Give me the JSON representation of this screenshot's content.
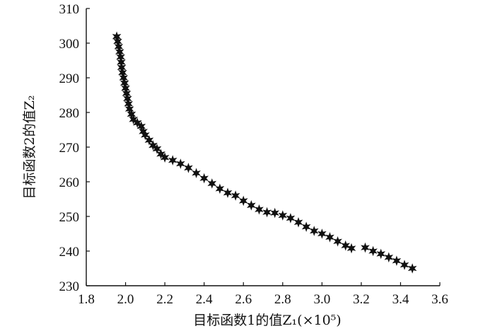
{
  "chart_data": {
    "type": "scatter",
    "title": "",
    "xlabel": "目标函数1的值Z₁(×10⁵)",
    "ylabel": "目标函数2的值Z₂",
    "xlim": [
      1.8,
      3.6
    ],
    "ylim": [
      230,
      310
    ],
    "xticks": [
      "1.8",
      "2.0",
      "2.2",
      "2.4",
      "2.6",
      "2.8",
      "3.0",
      "3.2",
      "3.4",
      "3.6"
    ],
    "yticks": [
      "230",
      "240",
      "250",
      "260",
      "270",
      "280",
      "290",
      "300",
      "310"
    ],
    "grid": false,
    "marker": "star",
    "series": [
      {
        "points": [
          [
            1.955,
            301.9
          ],
          [
            1.96,
            300.5
          ],
          [
            1.965,
            299.0
          ],
          [
            1.97,
            297.5
          ],
          [
            1.975,
            296.0
          ],
          [
            1.978,
            294.5
          ],
          [
            1.98,
            293.0
          ],
          [
            1.985,
            291.5
          ],
          [
            1.99,
            290.0
          ],
          [
            1.995,
            288.5
          ],
          [
            2.0,
            287.0
          ],
          [
            2.005,
            285.5
          ],
          [
            2.01,
            284.0
          ],
          [
            2.015,
            282.5
          ],
          [
            2.02,
            281.0
          ],
          [
            2.03,
            279.5
          ],
          [
            2.04,
            278.0
          ],
          [
            2.06,
            277.0
          ],
          [
            2.08,
            276.0
          ],
          [
            2.09,
            274.5
          ],
          [
            2.1,
            273.5
          ],
          [
            2.12,
            272.0
          ],
          [
            2.14,
            270.5
          ],
          [
            2.16,
            269.5
          ],
          [
            2.18,
            268.0
          ],
          [
            2.2,
            267.0
          ],
          [
            2.24,
            266.2
          ],
          [
            2.28,
            265.2
          ],
          [
            2.32,
            264.0
          ],
          [
            2.36,
            262.5
          ],
          [
            2.4,
            261.0
          ],
          [
            2.44,
            259.5
          ],
          [
            2.48,
            258.0
          ],
          [
            2.52,
            256.8
          ],
          [
            2.56,
            256.0
          ],
          [
            2.6,
            254.5
          ],
          [
            2.64,
            253.2
          ],
          [
            2.68,
            252.0
          ],
          [
            2.72,
            251.2
          ],
          [
            2.76,
            251.0
          ],
          [
            2.8,
            250.3
          ],
          [
            2.84,
            249.5
          ],
          [
            2.88,
            248.3
          ],
          [
            2.92,
            247.0
          ],
          [
            2.96,
            245.8
          ],
          [
            3.0,
            245.0
          ],
          [
            3.04,
            244.0
          ],
          [
            3.08,
            242.8
          ],
          [
            3.12,
            241.6
          ],
          [
            3.15,
            240.8
          ],
          [
            3.22,
            241.0
          ],
          [
            3.26,
            240.0
          ],
          [
            3.3,
            239.2
          ],
          [
            3.34,
            238.2
          ],
          [
            3.38,
            237.2
          ],
          [
            3.42,
            236.0
          ],
          [
            3.46,
            235.0
          ]
        ]
      }
    ]
  }
}
